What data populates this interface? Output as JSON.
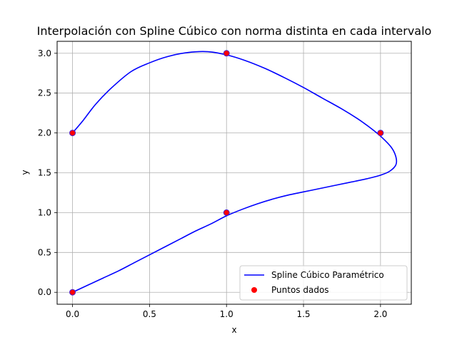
{
  "chart_data": {
    "type": "line",
    "title": "Interpolación con Spline Cúbico con norma distinta en cada intervalo",
    "xlabel": "x",
    "ylabel": "y",
    "xlim": [
      -0.1,
      2.2
    ],
    "ylim": [
      -0.15,
      3.15
    ],
    "xticks": [
      "0.0",
      "0.5",
      "1.0",
      "1.5",
      "2.0"
    ],
    "yticks": [
      "0.0",
      "0.5",
      "1.0",
      "1.5",
      "2.0",
      "2.5",
      "3.0"
    ],
    "grid": true,
    "legend_position": "lower-right",
    "series": [
      {
        "name": "Spline Cúbico Paramétrico",
        "kind": "line",
        "color": "#0000ff",
        "points": [
          [
            0.0,
            0.0
          ],
          [
            0.1,
            0.09
          ],
          [
            0.2,
            0.18
          ],
          [
            0.3,
            0.27
          ],
          [
            0.4,
            0.37
          ],
          [
            0.5,
            0.47
          ],
          [
            0.6,
            0.57
          ],
          [
            0.7,
            0.67
          ],
          [
            0.8,
            0.77
          ],
          [
            0.9,
            0.86
          ],
          [
            1.0,
            0.96
          ],
          [
            1.1,
            1.04
          ],
          [
            1.2,
            1.11
          ],
          [
            1.3,
            1.17
          ],
          [
            1.4,
            1.22
          ],
          [
            1.5,
            1.26
          ],
          [
            1.6,
            1.3
          ],
          [
            1.7,
            1.34
          ],
          [
            1.8,
            1.38
          ],
          [
            1.9,
            1.42
          ],
          [
            2.0,
            1.47
          ],
          [
            2.06,
            1.52
          ],
          [
            2.1,
            1.6
          ],
          [
            2.1,
            1.7
          ],
          [
            2.07,
            1.82
          ],
          [
            2.0,
            1.96
          ],
          [
            1.93,
            2.07
          ],
          [
            1.85,
            2.18
          ],
          [
            1.75,
            2.3
          ],
          [
            1.62,
            2.44
          ],
          [
            1.5,
            2.57
          ],
          [
            1.38,
            2.69
          ],
          [
            1.25,
            2.81
          ],
          [
            1.12,
            2.91
          ],
          [
            1.0,
            2.98
          ],
          [
            0.88,
            3.02
          ],
          [
            0.75,
            3.01
          ],
          [
            0.62,
            2.96
          ],
          [
            0.5,
            2.88
          ],
          [
            0.38,
            2.77
          ],
          [
            0.25,
            2.56
          ],
          [
            0.15,
            2.36
          ],
          [
            0.07,
            2.16
          ],
          [
            0.0,
            2.0
          ]
        ]
      },
      {
        "name": "Puntos dados",
        "kind": "scatter",
        "color": "#ff0000",
        "edge_color": "#4c1fd0",
        "points": [
          [
            0,
            0
          ],
          [
            1,
            1
          ],
          [
            2,
            2
          ],
          [
            1,
            3
          ],
          [
            0,
            2
          ]
        ]
      }
    ]
  }
}
